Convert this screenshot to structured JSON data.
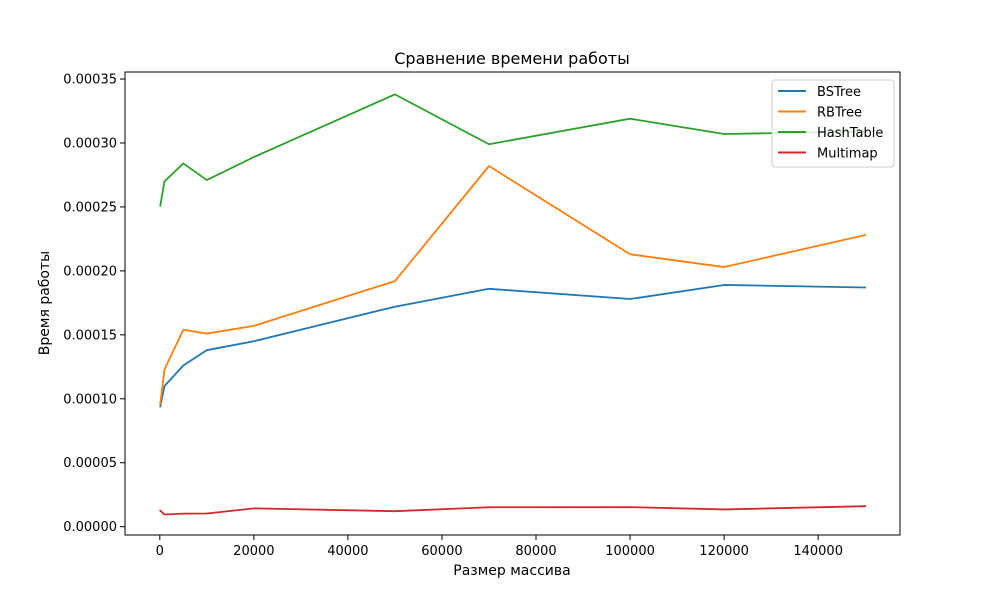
{
  "chart_data": {
    "type": "line",
    "title": "Сравнение времени работы",
    "xlabel": "Размер массива",
    "ylabel": "Время работы",
    "x": [
      100,
      1000,
      5000,
      10000,
      20000,
      50000,
      70000,
      100000,
      120000,
      150000
    ],
    "xlim": [
      -7400,
      157400
    ],
    "ylim": [
      -6.5e-06,
      0.0003555
    ],
    "xticks": [
      0,
      20000,
      40000,
      60000,
      80000,
      100000,
      120000,
      140000
    ],
    "xtick_labels": [
      "0",
      "20000",
      "40000",
      "60000",
      "80000",
      "100000",
      "120000",
      "140000"
    ],
    "yticks": [
      0,
      5e-05,
      0.0001,
      0.00015,
      0.0002,
      0.00025,
      0.0003,
      0.00035
    ],
    "ytick_labels": [
      "0.00000",
      "0.00005",
      "0.00010",
      "0.00015",
      "0.00020",
      "0.00025",
      "0.00030",
      "0.00035"
    ],
    "grid": false,
    "legend_position": "top-right",
    "series": [
      {
        "name": "BSTree",
        "color": "#1f77b4",
        "values": [
          9.4e-05,
          0.00011,
          0.000126,
          0.000138,
          0.000145,
          0.000172,
          0.000186,
          0.000178,
          0.000189,
          0.000187
        ]
      },
      {
        "name": "RBTree",
        "color": "#ff7f0e",
        "values": [
          9.6e-05,
          0.000123,
          0.000154,
          0.000151,
          0.000157,
          0.000192,
          0.000282,
          0.000213,
          0.000203,
          0.000228
        ]
      },
      {
        "name": "HashTable",
        "color": "#2ca02c",
        "values": [
          0.000251,
          0.00027,
          0.000284,
          0.000271,
          0.000289,
          0.000338,
          0.000299,
          0.000319,
          0.000307,
          0.000309
        ]
      },
      {
        "name": "Multimap",
        "color": "#d62728",
        "values": [
          1.25e-05,
          9.5e-06,
          1.02e-05,
          1.03e-05,
          1.43e-05,
          1.21e-05,
          1.52e-05,
          1.53e-05,
          1.35e-05,
          1.6e-05
        ]
      }
    ]
  }
}
